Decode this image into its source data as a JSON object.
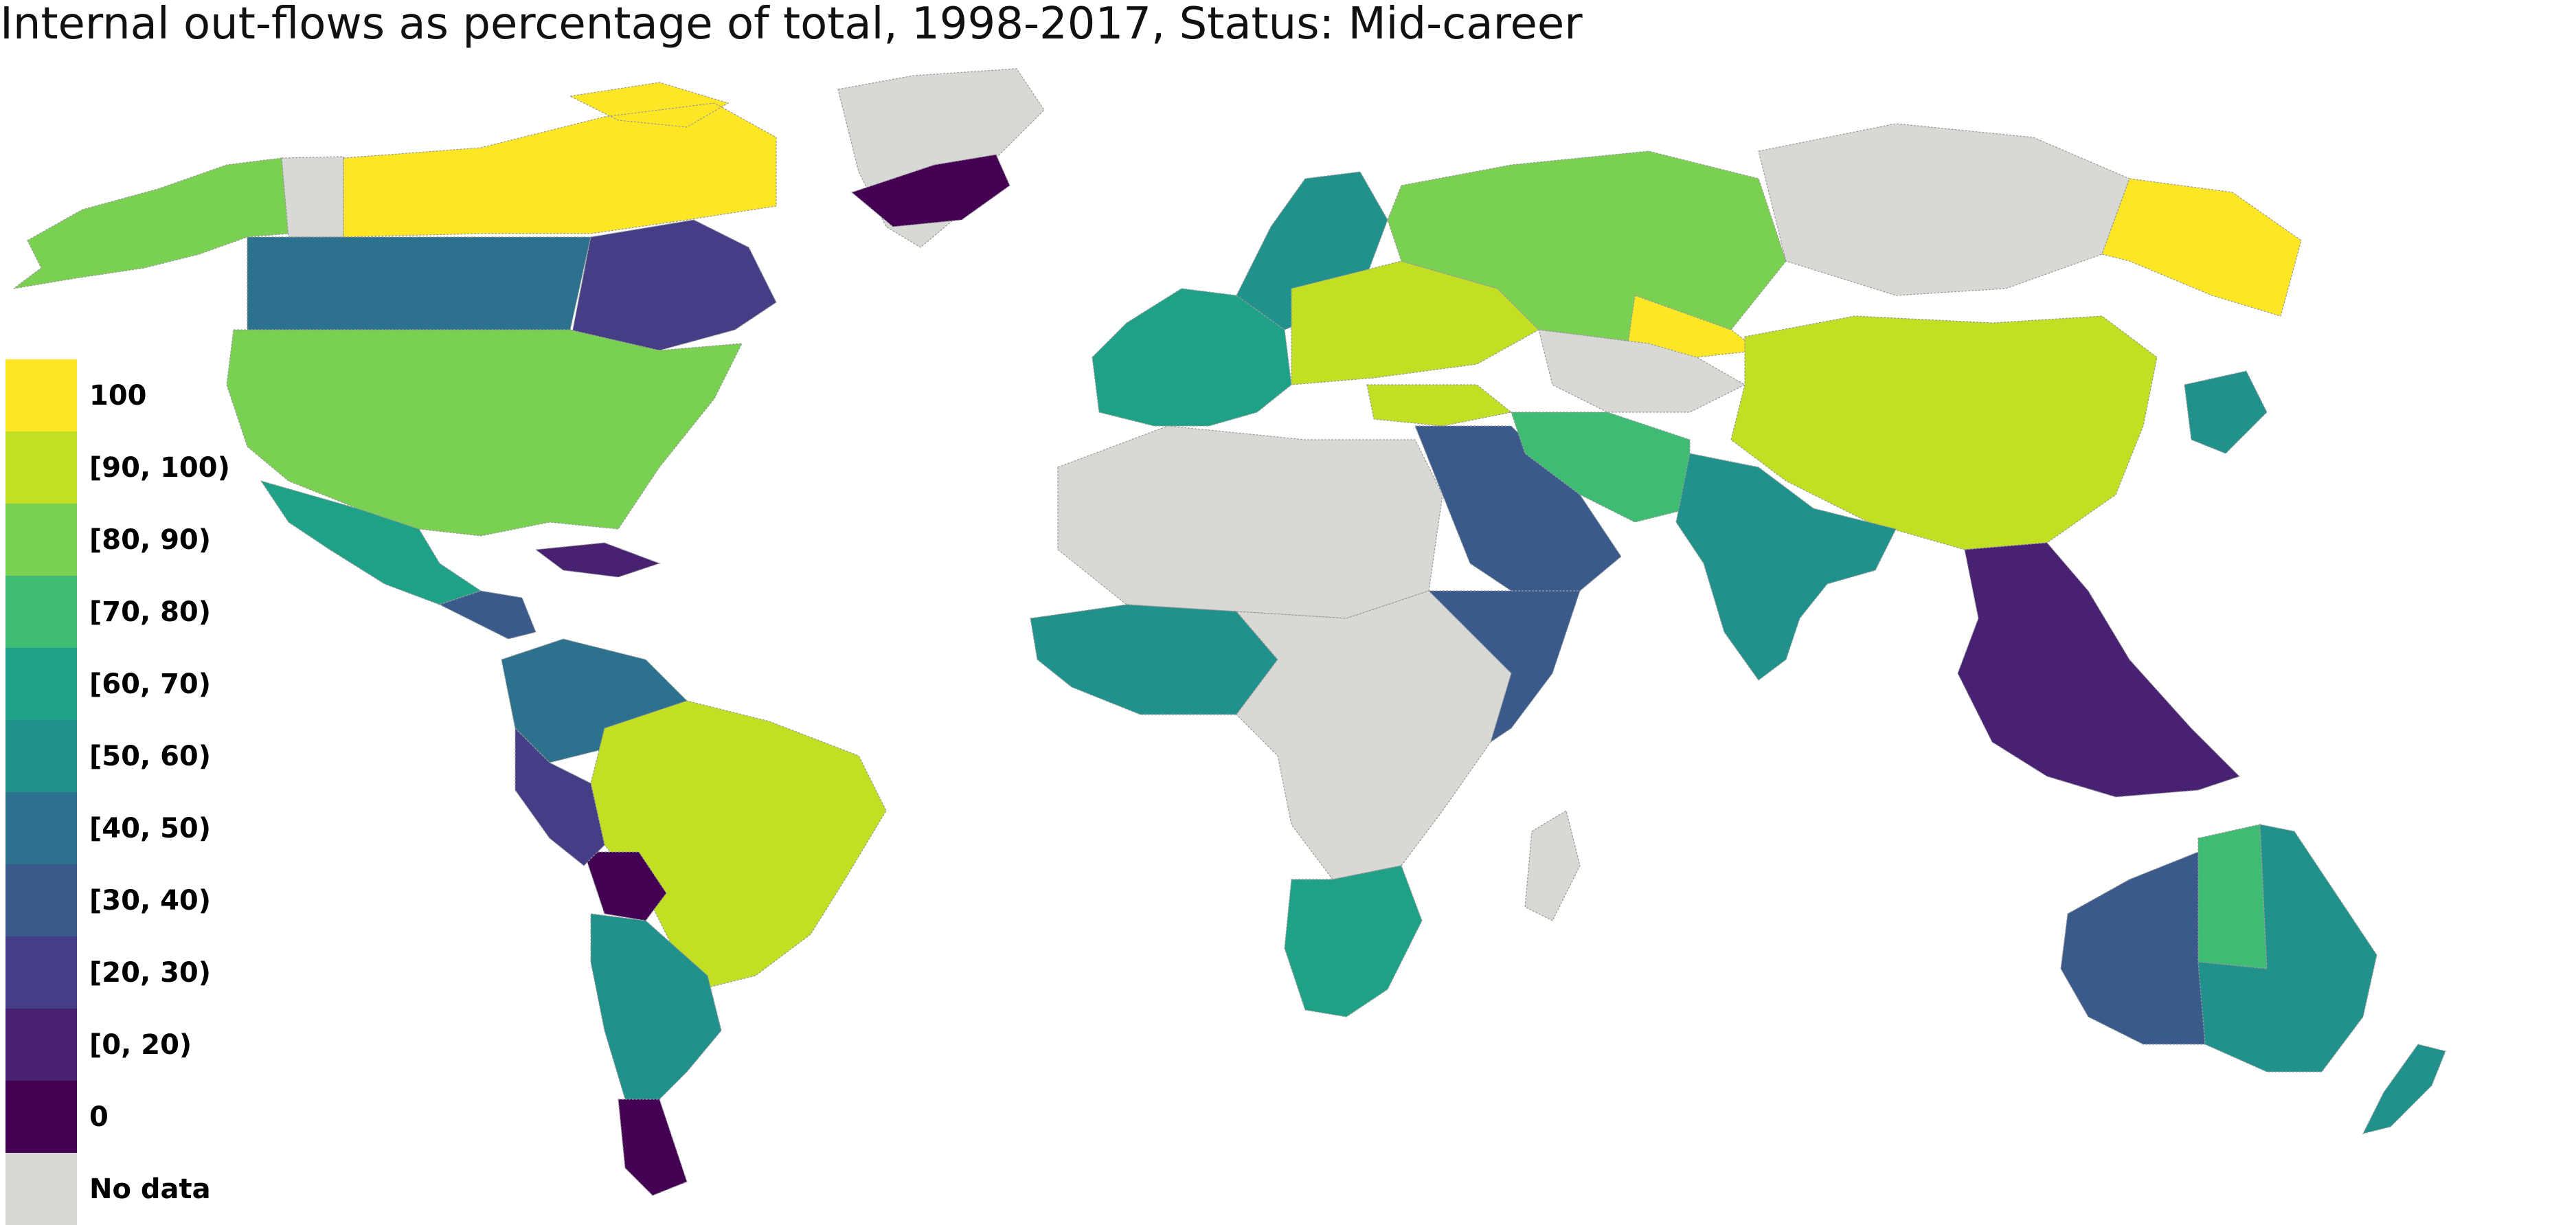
{
  "title": "Internal out-flows as percentage of total, 1998-2017, Status: Mid-career",
  "colors": {
    "background": "#ffffff",
    "border": "#9a9a9a",
    "no_data": "#d8d9d5",
    "unmapped": "#ffffff"
  },
  "legend": {
    "items": [
      {
        "label": "100",
        "color": "#fde725"
      },
      {
        "label": "[90, 100)",
        "color": "#c2df23"
      },
      {
        "label": "[80, 90)",
        "color": "#7ad151"
      },
      {
        "label": "[70, 80)",
        "color": "#3fbc73"
      },
      {
        "label": "[60, 70)",
        "color": "#1fa187"
      },
      {
        "label": "[50, 60)",
        "color": "#21918c"
      },
      {
        "label": "[40, 50)",
        "color": "#2c728e"
      },
      {
        "label": "[30, 40)",
        "color": "#3b5a8c"
      },
      {
        "label": "[20, 30)",
        "color": "#433e85"
      },
      {
        "label": "[0, 20)",
        "color": "#482173"
      },
      {
        "label": "0",
        "color": "#440154"
      },
      {
        "label": "No data",
        "color": "#d8d9d5"
      }
    ]
  },
  "regions": [
    {
      "name": "Alaska",
      "category": "[80, 90)"
    },
    {
      "name": "Yukon",
      "category": "No data"
    },
    {
      "name": "Northern Canada",
      "category": "100"
    },
    {
      "name": "Western Canada",
      "category": "[40, 50)"
    },
    {
      "name": "Eastern Canada",
      "category": "[20, 30)"
    },
    {
      "name": "Greenland",
      "category": "No data"
    },
    {
      "name": "East Greenland",
      "category": "0"
    },
    {
      "name": "United States",
      "category": "[80, 90)"
    },
    {
      "name": "Mexico",
      "category": "[60, 70)"
    },
    {
      "name": "Central America",
      "category": "[30, 40)"
    },
    {
      "name": "Caribbean",
      "category": "[0, 20)"
    },
    {
      "name": "Northern South America",
      "category": "[40, 50)"
    },
    {
      "name": "Brazil",
      "category": "[90, 100)"
    },
    {
      "name": "Bolivia",
      "category": "0"
    },
    {
      "name": "Peru",
      "category": "[20, 30)"
    },
    {
      "name": "Southern South America",
      "category": "[50, 60)"
    },
    {
      "name": "Patagonia",
      "category": "0"
    },
    {
      "name": "Western Europe",
      "category": "[60, 70)"
    },
    {
      "name": "Scandinavia",
      "category": "[50, 60)"
    },
    {
      "name": "Eastern Europe",
      "category": "[90, 100)"
    },
    {
      "name": "Russia West",
      "category": "[80, 90)"
    },
    {
      "name": "Russia East",
      "category": "No data"
    },
    {
      "name": "Far East Russia",
      "category": "100"
    },
    {
      "name": "Kazakhstan",
      "category": "100"
    },
    {
      "name": "Central Asia",
      "category": "No data"
    },
    {
      "name": "China",
      "category": "[90, 100)"
    },
    {
      "name": "Turkey",
      "category": "[90, 100)"
    },
    {
      "name": "Middle East",
      "category": "[30, 40)"
    },
    {
      "name": "Iran",
      "category": "[70, 80)"
    },
    {
      "name": "South Asia",
      "category": "[50, 60)"
    },
    {
      "name": "Southeast Asia",
      "category": "[0, 20)"
    },
    {
      "name": "Japan",
      "category": "[50, 60)"
    },
    {
      "name": "North Africa",
      "category": "No data"
    },
    {
      "name": "West Africa",
      "category": "[50, 60)"
    },
    {
      "name": "Central Africa",
      "category": "No data"
    },
    {
      "name": "East Africa",
      "category": "[30, 40)"
    },
    {
      "name": "Southern Africa",
      "category": "[60, 70)"
    },
    {
      "name": "Madagascar",
      "category": "No data"
    },
    {
      "name": "Western Australia",
      "category": "[30, 40)"
    },
    {
      "name": "Central Australia",
      "category": "[70, 80)"
    },
    {
      "name": "Eastern Australia",
      "category": "[50, 60)"
    },
    {
      "name": "New Zealand",
      "category": "[50, 60)"
    }
  ]
}
